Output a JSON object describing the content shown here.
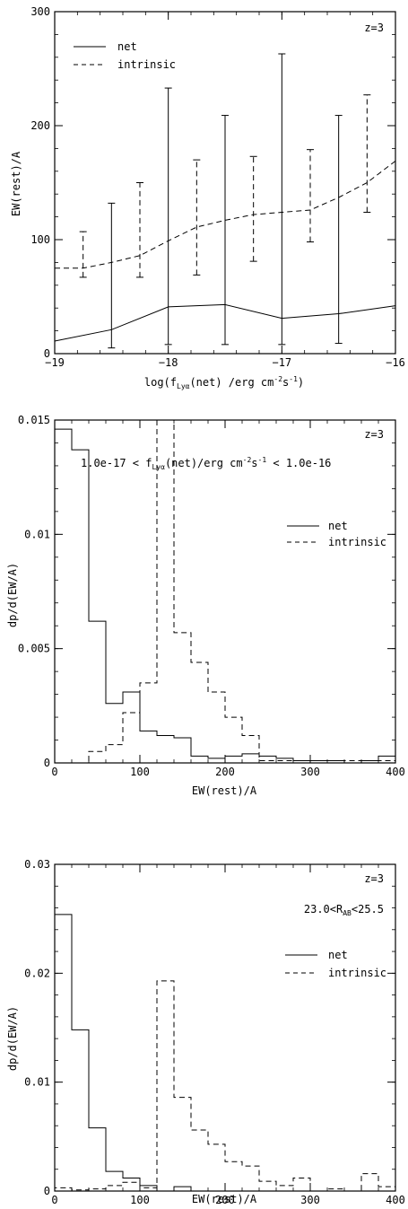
{
  "chart_data": [
    {
      "type": "line",
      "annotation": "z=3",
      "xlabel": "log(f(net) /erg cm s)",
      "xlabel_parts": {
        "pre": "log(f",
        "sub": "Lyα",
        "mid": "(net) /erg cm",
        "sup1": "-2",
        "mid2": "s",
        "sup2": "-1",
        "post": ")"
      },
      "ylabel": "EW(rest)/A",
      "xlim": [
        -19,
        -16
      ],
      "ylim": [
        0,
        300
      ],
      "x_ticks": [
        -19,
        -18,
        -17,
        -16
      ],
      "x_tick_labels": [
        "−19",
        "−18",
        "−17",
        "−16"
      ],
      "y_ticks": [
        0,
        100,
        200,
        300
      ],
      "y_tick_labels": [
        "0",
        "100",
        "200",
        "300"
      ],
      "legend": "top-left",
      "series": [
        {
          "name": "net",
          "style": "solid",
          "x": [
            -19.0,
            -18.5,
            -18.0,
            -17.5,
            -17.0,
            -16.5,
            -16.0
          ],
          "y": [
            11,
            21,
            41,
            43,
            31,
            35,
            42
          ],
          "errorbars": [
            {
              "x": -18.5,
              "low": 5,
              "high": 132
            },
            {
              "x": -18.0,
              "low": 8,
              "high": 233
            },
            {
              "x": -17.5,
              "low": 8,
              "high": 209
            },
            {
              "x": -17.0,
              "low": 8,
              "high": 263
            },
            {
              "x": -16.5,
              "low": 9,
              "high": 209
            }
          ]
        },
        {
          "name": "intrinsic",
          "style": "dashed",
          "x": [
            -19.0,
            -18.75,
            -18.5,
            -18.25,
            -18.0,
            -17.75,
            -17.5,
            -17.25,
            -17.0,
            -16.75,
            -16.5,
            -16.25,
            -16.0
          ],
          "y": [
            75,
            75,
            80,
            86,
            99,
            111,
            117,
            122,
            124,
            126,
            137,
            150,
            169
          ],
          "errorbars": [
            {
              "x": -18.75,
              "low": 67,
              "high": 107
            },
            {
              "x": -18.25,
              "low": 67,
              "high": 150
            },
            {
              "x": -17.75,
              "low": 69,
              "high": 170
            },
            {
              "x": -17.25,
              "low": 81,
              "high": 173
            },
            {
              "x": -16.75,
              "low": 98,
              "high": 179
            },
            {
              "x": -16.25,
              "low": 124,
              "high": 227
            }
          ]
        }
      ]
    },
    {
      "type": "histogram",
      "annotation": "z=3",
      "range_label": {
        "pre": "1.0e-17 < f",
        "sub": "Lyα",
        "mid": "(net)/erg cm",
        "sup1": "-2",
        "mid2": "s",
        "sup2": "-1",
        "post": " < 1.0e-16"
      },
      "xlabel": "EW(rest)/A",
      "ylabel": "dp/d(EW/A)",
      "xlim": [
        0,
        400
      ],
      "ylim": [
        0,
        0.015
      ],
      "x_ticks": [
        0,
        100,
        200,
        300,
        400
      ],
      "x_tick_labels": [
        "0",
        "100",
        "200",
        "300",
        "400"
      ],
      "y_ticks": [
        0,
        0.005,
        0.01,
        0.015
      ],
      "y_tick_labels": [
        "0",
        "0.005",
        "0.01",
        "0.015"
      ],
      "bin_edges": [
        0,
        20,
        40,
        60,
        80,
        100,
        120,
        140,
        160,
        180,
        200,
        220,
        240,
        260,
        280,
        300,
        320,
        340,
        360,
        380,
        400
      ],
      "legend": "right",
      "series": [
        {
          "name": "net",
          "style": "solid",
          "values": [
            0.0146,
            0.0137,
            0.0062,
            0.0026,
            0.0031,
            0.0014,
            0.0012,
            0.0011,
            0.0003,
            0.0002,
            0.0003,
            0.0004,
            0.0003,
            0.0002,
            0.0001,
            0.0001,
            0.0001,
            0.0,
            0.0001,
            0.0003
          ]
        },
        {
          "name": "intrinsic",
          "style": "dashed",
          "values": [
            0.0,
            0.0,
            0.0005,
            0.0008,
            0.0022,
            0.0035,
            0.016,
            0.0057,
            0.0044,
            0.0031,
            0.002,
            0.0012,
            0.0001,
            0.0001,
            0.0001,
            0.0001,
            0.0001,
            0.0001,
            0.0001,
            0.0001
          ]
        }
      ]
    },
    {
      "type": "histogram",
      "annotation": "z=3",
      "range_label": {
        "pre": "23.0<R",
        "sub": "AB",
        "post": "<25.5"
      },
      "xlabel": "EW(rest)/A",
      "ylabel": "dp/d(EW/A)",
      "xlim": [
        0,
        400
      ],
      "ylim": [
        0,
        0.03
      ],
      "x_ticks": [
        0,
        100,
        200,
        300,
        400
      ],
      "x_tick_labels": [
        "0",
        "100",
        "200",
        "300",
        "400"
      ],
      "y_ticks": [
        0,
        0.01,
        0.02,
        0.03
      ],
      "y_tick_labels": [
        "0",
        "0.01",
        "0.02",
        "0.03"
      ],
      "bin_edges": [
        0,
        20,
        40,
        60,
        80,
        100,
        120,
        140,
        160,
        180,
        200,
        220,
        240,
        260,
        280,
        300,
        320,
        340,
        360,
        380,
        400
      ],
      "legend": "right",
      "series": [
        {
          "name": "net",
          "style": "solid",
          "values": [
            0.0254,
            0.0148,
            0.0058,
            0.0018,
            0.0012,
            0.0005,
            0.0,
            0.0004,
            0.0,
            0.0,
            0.0,
            0.0,
            0.0,
            0.0,
            0.0,
            0.0,
            0.0,
            0.0,
            0.0,
            0.0
          ]
        },
        {
          "name": "intrinsic",
          "style": "dashed",
          "values": [
            0.0003,
            0.0001,
            0.0002,
            0.0005,
            0.0008,
            0.0003,
            0.0193,
            0.0086,
            0.0056,
            0.0043,
            0.0027,
            0.0023,
            0.0009,
            0.0005,
            0.0012,
            0.0,
            0.0002,
            0.0,
            0.0016,
            0.0004
          ]
        }
      ]
    }
  ]
}
